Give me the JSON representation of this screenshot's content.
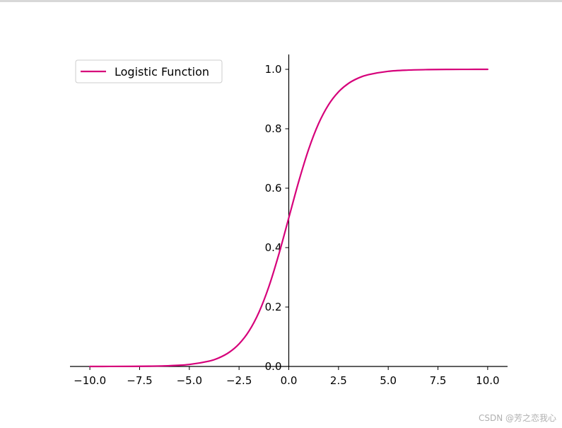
{
  "chart_data": {
    "type": "line",
    "title": "",
    "xlabel": "",
    "ylabel": "",
    "xlim": [
      -11,
      11
    ],
    "ylim": [
      0,
      1.05
    ],
    "x_ticks": [
      -10.0,
      -7.5,
      -5.0,
      -2.5,
      0.0,
      2.5,
      5.0,
      7.5,
      10.0
    ],
    "x_tick_labels": [
      "−10.0",
      "−7.5",
      "−5.0",
      "−2.5",
      "0.0",
      "2.5",
      "5.0",
      "7.5",
      "10.0"
    ],
    "y_ticks": [
      0.0,
      0.2,
      0.4,
      0.6,
      0.8,
      1.0
    ],
    "y_tick_labels": [
      "0.0",
      "0.2",
      "0.4",
      "0.6",
      "0.8",
      "1.0"
    ],
    "spines": "centered at origin, left and bottom only",
    "grid": false,
    "legend_position": "upper-left",
    "series": [
      {
        "name": "Logistic Function",
        "color": "#d6007a",
        "x": [
          -10,
          -9,
          -8,
          -7,
          -6,
          -5,
          -4,
          -3.5,
          -3,
          -2.5,
          -2,
          -1.5,
          -1,
          -0.5,
          0,
          0.5,
          1,
          1.5,
          2,
          2.5,
          3,
          3.5,
          4,
          5,
          6,
          7,
          8,
          9,
          10
        ],
        "y": [
          0.0,
          0.0001,
          0.0003,
          0.0009,
          0.0025,
          0.0067,
          0.018,
          0.0293,
          0.0474,
          0.0759,
          0.1192,
          0.1824,
          0.2689,
          0.3775,
          0.5,
          0.6225,
          0.7311,
          0.8176,
          0.8808,
          0.9241,
          0.9526,
          0.9707,
          0.982,
          0.9933,
          0.9975,
          0.9991,
          0.9997,
          0.9999,
          1.0
        ]
      }
    ]
  },
  "watermark": "CSDN @芳之恋我心"
}
